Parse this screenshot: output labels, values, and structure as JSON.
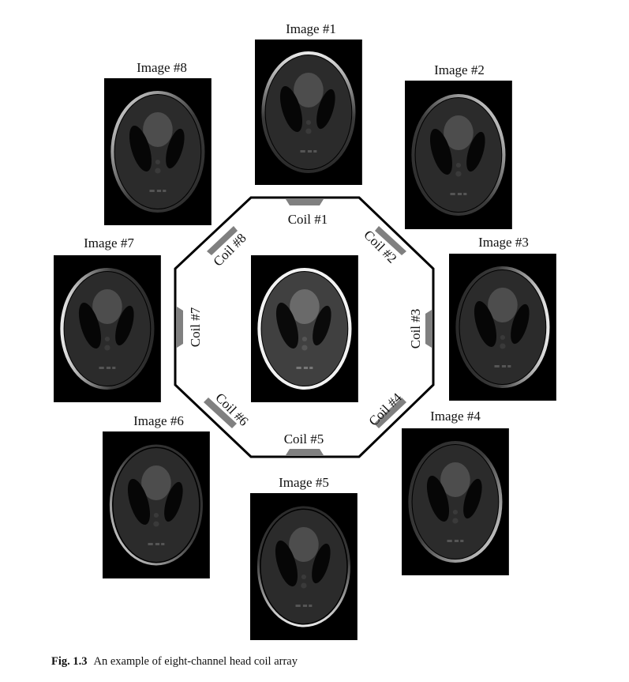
{
  "figure": {
    "center_image": "Reconstructed image (combined)",
    "images": [
      {
        "id": 1,
        "label": "Image #1"
      },
      {
        "id": 2,
        "label": "Image #2"
      },
      {
        "id": 3,
        "label": "Image #3"
      },
      {
        "id": 4,
        "label": "Image #4"
      },
      {
        "id": 5,
        "label": "Image #5"
      },
      {
        "id": 6,
        "label": "Image #6"
      },
      {
        "id": 7,
        "label": "Image #7"
      },
      {
        "id": 8,
        "label": "Image #8"
      }
    ],
    "coils": [
      {
        "id": 1,
        "label": "Coil #1"
      },
      {
        "id": 2,
        "label": "Coil #2"
      },
      {
        "id": 3,
        "label": "Coil #3"
      },
      {
        "id": 4,
        "label": "Coil #4"
      },
      {
        "id": 5,
        "label": "Coil #5"
      },
      {
        "id": 6,
        "label": "Coil #6"
      },
      {
        "id": 7,
        "label": "Coil #7"
      },
      {
        "id": 8,
        "label": "Coil #8"
      }
    ],
    "colors": {
      "coil_pad": "#808080",
      "frame": "#000000",
      "background": "#ffffff"
    }
  },
  "caption": {
    "number": "Fig. 1.3",
    "text": "An example of eight-channel head coil array"
  }
}
